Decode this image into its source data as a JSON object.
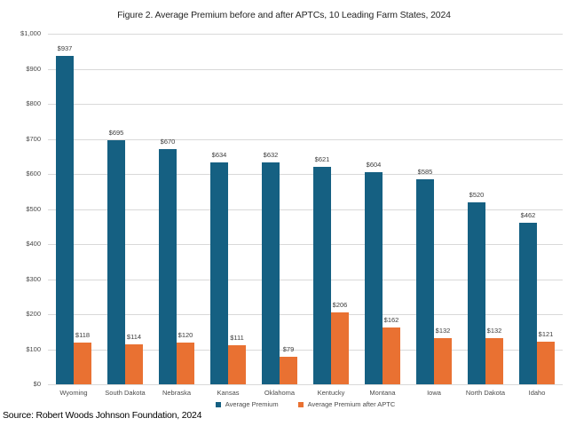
{
  "figure": {
    "source_note": "Source: Robert Woods Johnson Foundation, 2024"
  },
  "colors": {
    "series1": "#156082",
    "series2": "#E97132",
    "gridline": "#d9d9d9",
    "axis_label": "#4a4a4a",
    "value_label": "#3c3c3c",
    "background": "#ffffff"
  },
  "chart_data": {
    "type": "bar",
    "title": "Figure 2. Average Premium before and after APTCs, 10 Leading Farm States, 2024",
    "categories": [
      "Wyoming",
      "South Dakota",
      "Nebraska",
      "Kansas",
      "Oklahoma",
      "Kentucky",
      "Montana",
      "Iowa",
      "North Dakota",
      "Idaho"
    ],
    "series": [
      {
        "name": "Average Premium",
        "color": "#156082",
        "values": [
          937,
          695,
          670,
          634,
          632,
          621,
          604,
          585,
          520,
          462
        ]
      },
      {
        "name": "Average Premium after APTC",
        "color": "#E97132",
        "values": [
          118,
          114,
          120,
          111,
          79,
          206,
          162,
          132,
          132,
          121
        ]
      }
    ],
    "value_prefix": "$",
    "xlabel": "",
    "ylabel": "",
    "ylim": [
      0,
      1000
    ],
    "ytick_step": 100,
    "ytick_labels": [
      "$0",
      "$100",
      "$200",
      "$300",
      "$400",
      "$500",
      "$600",
      "$700",
      "$800",
      "$900",
      "$1,000"
    ],
    "grid": true,
    "legend_position": "bottom"
  }
}
